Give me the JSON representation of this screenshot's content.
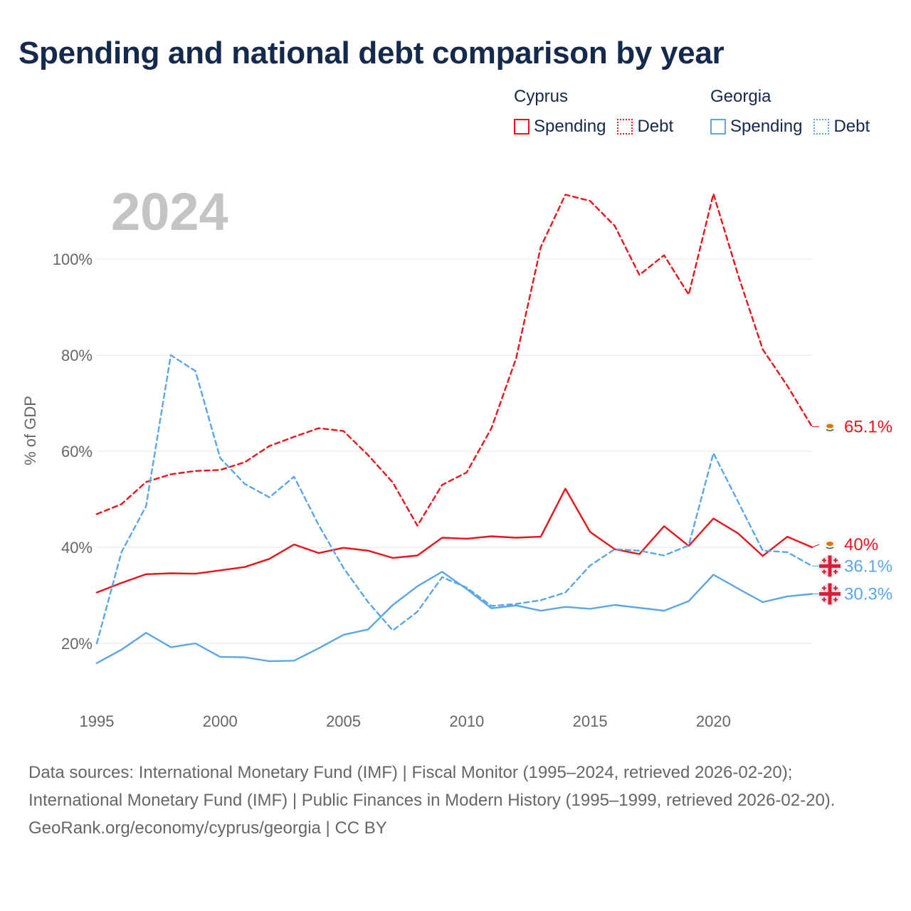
{
  "title": "Spending and national debt comparison by year",
  "legend": {
    "groups": [
      {
        "name": "Cyprus",
        "color": "#e8131b",
        "items": [
          {
            "label": "Spending",
            "style": "solid"
          },
          {
            "label": "Debt",
            "style": "dotted"
          }
        ]
      },
      {
        "name": "Georgia",
        "color": "#5aa6e6",
        "items": [
          {
            "label": "Spending",
            "style": "solid"
          },
          {
            "label": "Debt",
            "style": "dotted"
          }
        ]
      }
    ]
  },
  "chart_data": {
    "type": "line",
    "year_label": "2024",
    "ylabel": "% of GDP",
    "ylim": [
      8,
      112
    ],
    "yticks": [
      20,
      40,
      60,
      80,
      100
    ],
    "ytick_labels": [
      "20%",
      "40%",
      "60%",
      "80%",
      "100%"
    ],
    "xlim": [
      1995,
      2024
    ],
    "xticks": [
      1995,
      2000,
      2005,
      2010,
      2015,
      2020
    ],
    "xtick_labels": [
      "1995",
      "2000",
      "2005",
      "2010",
      "2015",
      "2020"
    ],
    "x": [
      1995,
      1996,
      1997,
      1998,
      1999,
      2000,
      2001,
      2002,
      2003,
      2004,
      2005,
      2006,
      2007,
      2008,
      2009,
      2010,
      2011,
      2012,
      2013,
      2014,
      2015,
      2016,
      2017,
      2018,
      2019,
      2020,
      2021,
      2022,
      2023,
      2024
    ],
    "series": [
      {
        "name": "Cyprus Debt",
        "country": "Cyprus",
        "metric": "Debt",
        "color": "#e8131b",
        "dashed": true,
        "values": [
          46.9,
          49.0,
          53.6,
          55.2,
          55.9,
          56.1,
          57.7,
          61.1,
          63.0,
          64.8,
          64.2,
          59.2,
          53.5,
          44.5,
          53.0,
          55.6,
          64.8,
          79.3,
          102.5,
          113.4,
          112.1,
          106.9,
          96.7,
          100.8,
          92.6,
          113.6,
          96.7,
          81.2,
          73.6,
          65.1
        ],
        "end_label": "65.1%"
      },
      {
        "name": "Cyprus Spending",
        "country": "Cyprus",
        "metric": "Spending",
        "color": "#e8131b",
        "dashed": false,
        "values": [
          30.6,
          32.6,
          34.4,
          34.6,
          34.5,
          35.2,
          35.9,
          37.6,
          40.6,
          38.8,
          39.9,
          39.3,
          37.8,
          38.3,
          42.0,
          41.8,
          42.3,
          42.0,
          42.2,
          52.2,
          43.2,
          39.6,
          38.6,
          44.4,
          40.3,
          46.0,
          42.9,
          38.2,
          42.2,
          40.0
        ],
        "end_label": "40%"
      },
      {
        "name": "Georgia Debt",
        "country": "Georgia",
        "metric": "Debt",
        "color": "#5aa6e6",
        "dashed": true,
        "values": [
          20.0,
          39.0,
          48.6,
          80.0,
          76.7,
          58.6,
          53.2,
          50.4,
          54.7,
          44.6,
          35.7,
          28.6,
          22.7,
          26.6,
          33.8,
          31.6,
          27.8,
          28.2,
          29.0,
          30.6,
          36.2,
          39.6,
          39.3,
          38.3,
          40.4,
          59.6,
          49.5,
          39.3,
          39.0,
          36.1
        ],
        "end_label": "36.1%"
      },
      {
        "name": "Georgia Spending",
        "country": "Georgia",
        "metric": "Spending",
        "color": "#5aa6e6",
        "dashed": false,
        "values": [
          15.9,
          18.7,
          22.2,
          19.2,
          20.0,
          17.2,
          17.1,
          16.3,
          16.4,
          19.0,
          21.8,
          22.9,
          28.0,
          31.9,
          34.9,
          31.3,
          27.3,
          27.9,
          26.8,
          27.6,
          27.2,
          28.0,
          27.4,
          26.8,
          28.8,
          34.3,
          31.4,
          28.6,
          29.8,
          30.3
        ],
        "end_label": "30.3%"
      }
    ]
  },
  "footer": {
    "sources": "Data sources: International Monetary Fund (IMF) | Fiscal Monitor (1995–2024, retrieved 2026-02-20); International Monetary Fund (IMF) | Public Finances in Modern History (1995–1999, retrieved 2026-02-20).",
    "credit": "GeoRank.org/economy/cyprus/georgia | CC BY"
  }
}
